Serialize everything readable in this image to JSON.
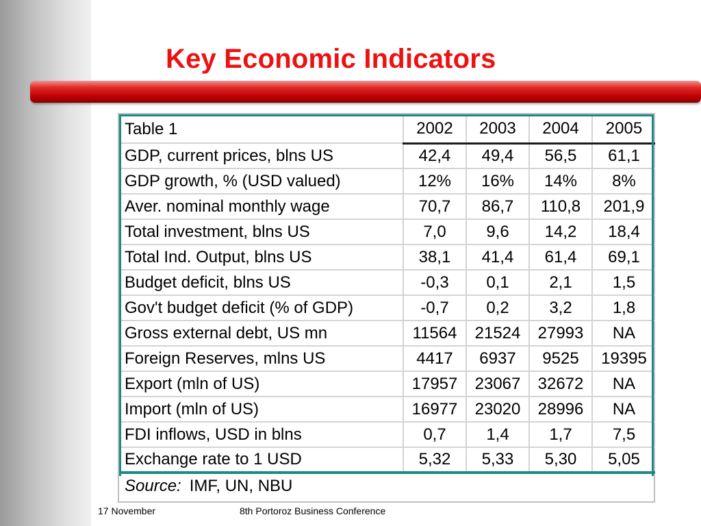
{
  "slide": {
    "title": "Key Economic Indicators",
    "accent_color": "#ee1111",
    "table_border_color": "#1a8a88"
  },
  "table": {
    "header": {
      "label": "Table 1",
      "years": [
        "2002",
        "2003",
        "2004",
        "2005"
      ]
    },
    "rows": [
      {
        "label": "GDP, current prices, blns US",
        "values": [
          "42,4",
          "49,4",
          "56,5",
          "61,1"
        ]
      },
      {
        "label": "GDP growth, % (USD valued)",
        "values": [
          "12%",
          "16%",
          "14%",
          "8%"
        ]
      },
      {
        "label": "Aver. nominal monthly wage",
        "values": [
          "70,7",
          "86,7",
          "110,8",
          "201,9"
        ]
      },
      {
        "label": "Total investment, blns US",
        "values": [
          "7,0",
          "9,6",
          "14,2",
          "18,4"
        ]
      },
      {
        "label": "Total Ind. Output, blns US",
        "values": [
          "38,1",
          "41,4",
          "61,4",
          "69,1"
        ]
      },
      {
        "label": "Budget deficit, blns US",
        "values": [
          "-0,3",
          "0,1",
          "2,1",
          "1,5"
        ]
      },
      {
        "label": "Gov't budget deficit (% of GDP)",
        "values": [
          "-0,7",
          "0,2",
          "3,2",
          "1,8"
        ]
      },
      {
        "label": "Gross external debt, US mn",
        "values": [
          "11564",
          "21524",
          "27993",
          "NA"
        ]
      },
      {
        "label": "Foreign Reserves, mlns US",
        "values": [
          "4417",
          "6937",
          "9525",
          "19395"
        ]
      },
      {
        "label": "Export (mln of US)",
        "values": [
          "17957",
          "23067",
          "32672",
          "NA"
        ]
      },
      {
        "label": "Import (mln of US)",
        "values": [
          "16977",
          "23020",
          "28996",
          "NA"
        ]
      },
      {
        "label": "FDI inflows, USD in blns",
        "values": [
          "0,7",
          "1,4",
          "1,7",
          "7,5"
        ]
      },
      {
        "label": "Exchange rate to 1 USD",
        "values": [
          "5,32",
          "5,33",
          "5,30",
          "5,05"
        ]
      }
    ],
    "source": {
      "label": "Source:",
      "text": "IMF, UN, NBU"
    }
  },
  "footer": {
    "date": "17 November",
    "conference": "8th Portoroz Business Conference"
  }
}
